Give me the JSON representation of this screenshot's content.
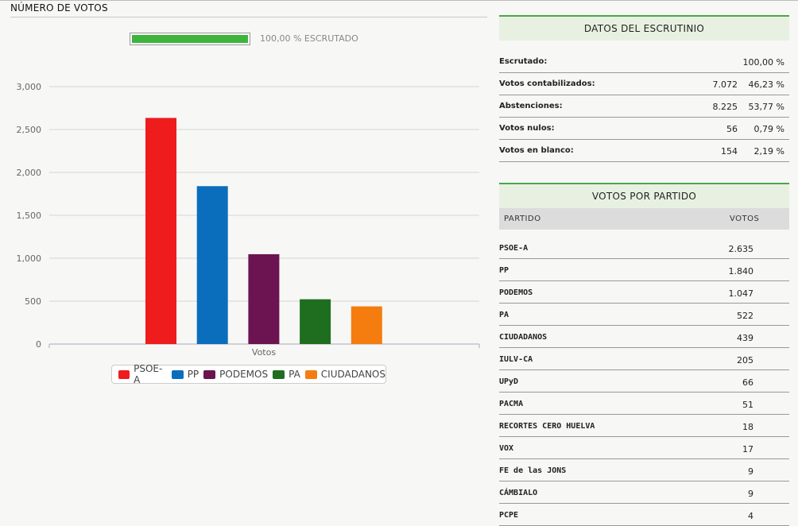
{
  "header": {
    "title": "NÚMERO DE VOTOS"
  },
  "progress": {
    "percent": 100,
    "label": "100,00 % ESCRUTADO"
  },
  "chart_data": {
    "type": "bar",
    "categories": [
      "Votos"
    ],
    "series": [
      {
        "name": "PSOE-A",
        "values": [
          2635
        ],
        "color": "#ee1c1c"
      },
      {
        "name": "PP",
        "values": [
          1840
        ],
        "color": "#0a6ebd"
      },
      {
        "name": "PODEMOS",
        "values": [
          1047
        ],
        "color": "#6b1451"
      },
      {
        "name": "PA",
        "values": [
          522
        ],
        "color": "#1f6e1f"
      },
      {
        "name": "CIUDADANOS",
        "values": [
          439
        ],
        "color": "#f57d0f"
      }
    ],
    "yticks": [
      "0",
      "500",
      "1,000",
      "1,500",
      "2,000",
      "2,500",
      "3,000"
    ],
    "ylim": [
      0,
      3000
    ],
    "grid": true,
    "legend_position": "bottom"
  },
  "scrutiny": {
    "title": "DATOS DEL ESCRUTINIO",
    "rows": [
      {
        "label": "Escrutado:",
        "value": "",
        "percent": "100,00 %"
      },
      {
        "label": "Votos contabilizados:",
        "value": "7.072",
        "percent": "46,23 %"
      },
      {
        "label": "Abstenciones:",
        "value": "8.225",
        "percent": "53,77 %"
      },
      {
        "label": "Votos nulos:",
        "value": "56",
        "percent": "0,79 %"
      },
      {
        "label": "Votos en blanco:",
        "value": "154",
        "percent": "2,19 %"
      }
    ]
  },
  "parties": {
    "title": "VOTOS POR PARTIDO",
    "col_party": "PARTIDO",
    "col_votes": "VOTOS",
    "rows": [
      {
        "name": "PSOE-A",
        "votes": "2.635"
      },
      {
        "name": "PP",
        "votes": "1.840"
      },
      {
        "name": "PODEMOS",
        "votes": "1.047"
      },
      {
        "name": "PA",
        "votes": "522"
      },
      {
        "name": "CIUDADANOS",
        "votes": "439"
      },
      {
        "name": "IULV-CA",
        "votes": "205"
      },
      {
        "name": "UPyD",
        "votes": "66"
      },
      {
        "name": "PACMA",
        "votes": "51"
      },
      {
        "name": "RECORTES CERO HUELVA",
        "votes": "18"
      },
      {
        "name": "VOX",
        "votes": "17"
      },
      {
        "name": "FE de las JONS",
        "votes": "9"
      },
      {
        "name": "CÁMBIALO",
        "votes": "9"
      },
      {
        "name": "PCPE",
        "votes": "4"
      }
    ]
  }
}
